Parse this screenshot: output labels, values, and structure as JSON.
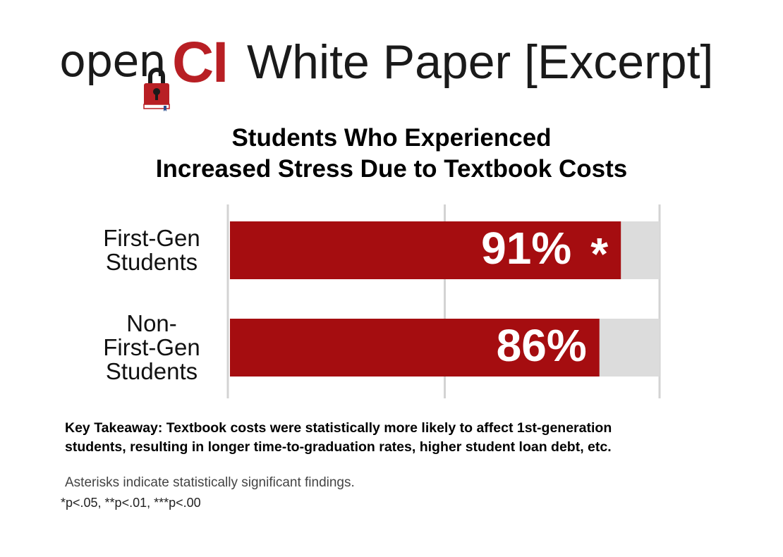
{
  "header": {
    "logo_text_open": "open",
    "logo_text_ci": "CI",
    "title": "White Paper [Excerpt]"
  },
  "colors": {
    "bar": "#a50d10",
    "track": "#dcdcdc",
    "grid": "#d3d3d3",
    "logo_red": "#b81f24"
  },
  "icons": {
    "logo": "red-book-with-padlock-icon"
  },
  "chart_data": {
    "type": "bar",
    "orientation": "horizontal",
    "title": [
      "Students Who Experienced",
      "Increased Stress Due to Textbook Costs"
    ],
    "categories": [
      [
        "First-Gen",
        "Students"
      ],
      [
        "Non-",
        "First-Gen",
        "Students"
      ]
    ],
    "values": [
      91,
      86
    ],
    "data_labels": [
      "91%",
      "86%"
    ],
    "significance": [
      "*",
      ""
    ],
    "xlim": [
      0,
      100
    ],
    "grid": true,
    "legend": "none"
  },
  "footer": {
    "takeaway": [
      "Key Takeaway: Textbook costs were statistically more likely to affect 1st-generation",
      "students, resulting in longer time-to-graduation rates, higher student loan debt, etc."
    ],
    "note": "Asterisks indicate statistically significant findings.",
    "pvalues": "*p<.05, **p<.01, ***p<.00"
  }
}
